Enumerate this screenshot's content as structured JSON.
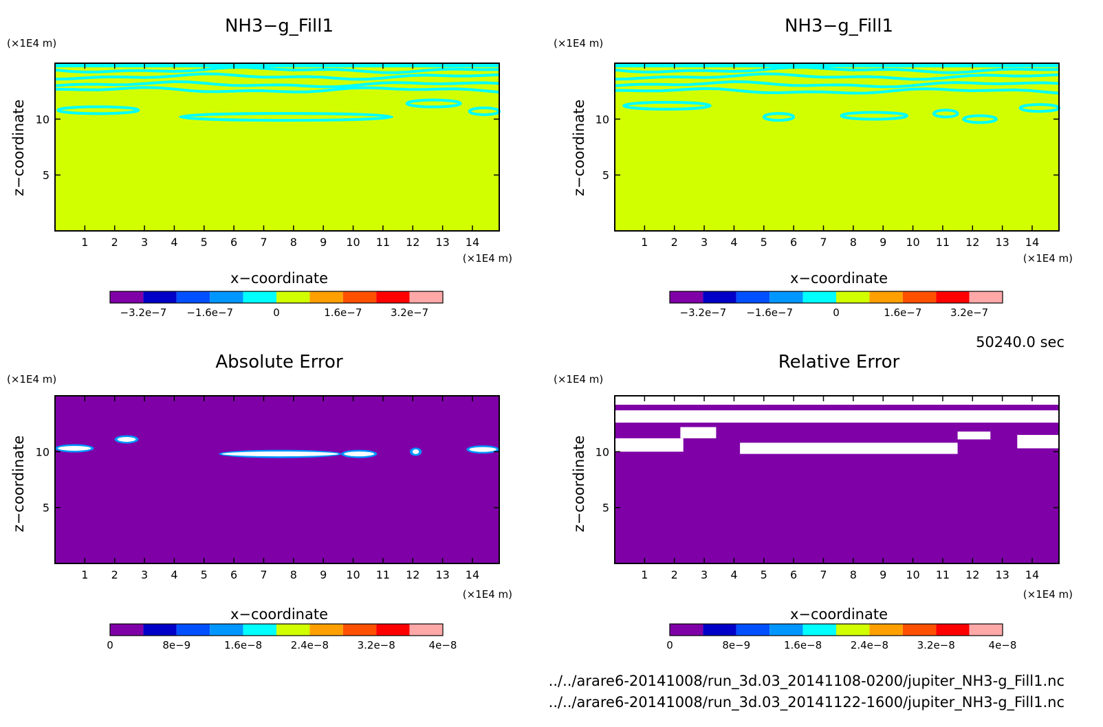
{
  "figure": {
    "time_label": "50240.0 sec",
    "files": [
      "../../arare6-20141008/run_3d.03_20141108-0200/jupiter_NH3-g_Fill1.nc",
      "../../arare6-20141008/run_3d.03_20141122-1600/jupiter_NH3-g_Fill1.nc"
    ]
  },
  "colors": {
    "bands": [
      "#7f00a7",
      "#0000c8",
      "#0050ff",
      "#0096ff",
      "#00ffff",
      "#d2ff00",
      "#ffa000",
      "#ff5000",
      "#ff0000",
      "#ffa8a8"
    ],
    "background_band": "#d2ff00",
    "contour": "#00ffff",
    "absolute_error_bg": "#7f00a7",
    "white": "#ffffff"
  },
  "chart_data": [
    {
      "type": "heatmap",
      "title": "NH3−g_Fill1",
      "xlabel": "x−coordinate",
      "ylabel": "z−coordinate",
      "x_unit": "(×1E4 m)",
      "y_unit": "(×1E4 m)",
      "xlim": [
        0,
        14.9
      ],
      "ylim": [
        0,
        15
      ],
      "xticks": [
        "1",
        "2",
        "3",
        "4",
        "5",
        "6",
        "7",
        "8",
        "9",
        "10",
        "11",
        "12",
        "13",
        "14"
      ],
      "yticks": [
        "5",
        "10"
      ],
      "colorbar": {
        "min": -4e-07,
        "max": 4e-07,
        "levels": 10,
        "ticks": [
          "−3.2e−7",
          "−1.6e−7",
          "0",
          "1.6e−7",
          "3.2e−7"
        ]
      },
      "background_value": "0",
      "contour_lines_z": [
        14.4,
        13.8,
        13.1,
        12.6
      ],
      "features": [
        {
          "x": [
            0.1,
            2.8
          ],
          "z": 10.8
        },
        {
          "x": [
            4.2,
            11.3
          ],
          "z": 10.2
        },
        {
          "x": [
            11.8,
            13.6
          ],
          "z": 11.4
        },
        {
          "x": [
            13.9,
            14.9
          ],
          "z": 10.7
        }
      ]
    },
    {
      "type": "heatmap",
      "title": "NH3−g_Fill1",
      "xlabel": "x−coordinate",
      "ylabel": "z−coordinate",
      "x_unit": "(×1E4 m)",
      "y_unit": "(×1E4 m)",
      "xlim": [
        0,
        14.9
      ],
      "ylim": [
        0,
        15
      ],
      "xticks": [
        "1",
        "2",
        "3",
        "4",
        "5",
        "6",
        "7",
        "8",
        "9",
        "10",
        "11",
        "12",
        "13",
        "14"
      ],
      "yticks": [
        "5",
        "10"
      ],
      "colorbar": {
        "min": -4e-07,
        "max": 4e-07,
        "levels": 10,
        "ticks": [
          "−3.2e−7",
          "−1.6e−7",
          "0",
          "1.6e−7",
          "3.2e−7"
        ]
      },
      "background_value": "0",
      "contour_lines_z": [
        14.4,
        13.8,
        13.1,
        12.5
      ],
      "features": [
        {
          "x": [
            0.3,
            3.2
          ],
          "z": 11.2
        },
        {
          "x": [
            5.0,
            6.0
          ],
          "z": 10.2
        },
        {
          "x": [
            7.6,
            9.8
          ],
          "z": 10.3
        },
        {
          "x": [
            10.7,
            11.5
          ],
          "z": 10.5
        },
        {
          "x": [
            11.7,
            12.8
          ],
          "z": 10.0
        },
        {
          "x": [
            13.6,
            14.9
          ],
          "z": 11.0
        }
      ]
    },
    {
      "type": "heatmap",
      "title": "Absolute Error",
      "xlabel": "x−coordinate",
      "ylabel": "z−coordinate",
      "x_unit": "(×1E4 m)",
      "y_unit": "(×1E4 m)",
      "xlim": [
        0,
        14.9
      ],
      "ylim": [
        0,
        15
      ],
      "xticks": [
        "1",
        "2",
        "3",
        "4",
        "5",
        "6",
        "7",
        "8",
        "9",
        "10",
        "11",
        "12",
        "13",
        "14"
      ],
      "yticks": [
        "5",
        "10"
      ],
      "colorbar": {
        "min": 0,
        "max": 4e-08,
        "levels": 10,
        "ticks": [
          "0",
          "8e−9",
          "1.6e−8",
          "2.4e−8",
          "3.2e−8",
          "4e−8"
        ]
      },
      "background_value": "0",
      "features": [
        {
          "x": [
            0.0,
            1.3
          ],
          "z": 10.3
        },
        {
          "x": [
            2.0,
            2.8
          ],
          "z": 11.1
        },
        {
          "x": [
            5.5,
            9.6
          ],
          "z": 9.8
        },
        {
          "x": [
            9.6,
            10.8
          ],
          "z": 9.8
        },
        {
          "x": [
            11.9,
            12.3
          ],
          "z": 10.0
        },
        {
          "x": [
            13.8,
            14.9
          ],
          "z": 10.2
        }
      ]
    },
    {
      "type": "heatmap",
      "title": "Relative Error",
      "xlabel": "x−coordinate",
      "ylabel": "z−coordinate",
      "x_unit": "(×1E4 m)",
      "y_unit": "(×1E4 m)",
      "xlim": [
        0,
        14.9
      ],
      "ylim": [
        0,
        15
      ],
      "xticks": [
        "1",
        "2",
        "3",
        "4",
        "5",
        "6",
        "7",
        "8",
        "9",
        "10",
        "11",
        "12",
        "13",
        "14"
      ],
      "yticks": [
        "5",
        "10"
      ],
      "colorbar": {
        "min": 0,
        "max": 4e-08,
        "levels": 10,
        "ticks": [
          "0",
          "8e−9",
          "1.6e−8",
          "2.4e−8",
          "3.2e−8",
          "4e−8"
        ]
      },
      "background_value": "0",
      "undefined_regions": [
        {
          "x": [
            0.0,
            14.9
          ],
          "z": [
            14.2,
            15.0
          ]
        },
        {
          "x": [
            0.0,
            14.9
          ],
          "z": [
            12.6,
            13.7
          ]
        },
        {
          "x": [
            0.0,
            2.3
          ],
          "z": [
            10.0,
            11.2
          ]
        },
        {
          "x": [
            2.2,
            3.4
          ],
          "z": [
            11.2,
            12.2
          ]
        },
        {
          "x": [
            4.2,
            11.5
          ],
          "z": [
            9.8,
            10.8
          ]
        },
        {
          "x": [
            11.5,
            12.6
          ],
          "z": [
            11.1,
            11.8
          ]
        },
        {
          "x": [
            13.5,
            14.9
          ],
          "z": [
            10.3,
            11.5
          ]
        }
      ]
    }
  ]
}
